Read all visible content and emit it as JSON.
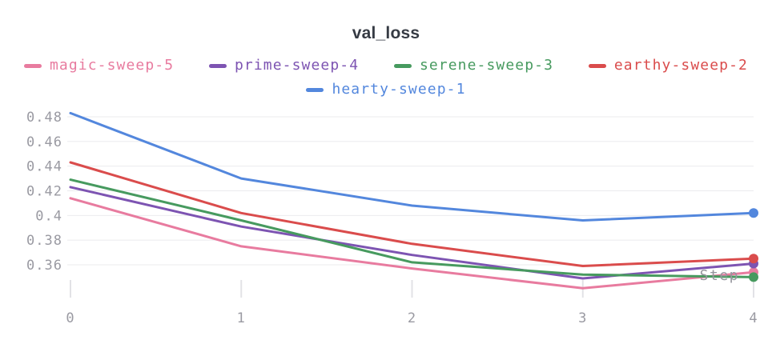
{
  "title": "val_loss",
  "legend": {
    "rows": [
      [
        {
          "label": "magic-sweep-5",
          "color": "#E87B9F"
        },
        {
          "label": "prime-sweep-4",
          "color": "#7D54B2"
        },
        {
          "label": "serene-sweep-3",
          "color": "#479A5F"
        },
        {
          "label": "earthy-sweep-2",
          "color": "#DA4C4C"
        }
      ],
      [
        {
          "label": "hearty-sweep-1",
          "color": "#5387DD"
        }
      ]
    ]
  },
  "axes": {
    "x_title": "Step",
    "x_tick_labels": [
      "0",
      "1",
      "2",
      "3",
      "4"
    ],
    "y_tick_labels": [
      "0.48",
      "0.46",
      "0.44",
      "0.42",
      "0.4",
      "0.38",
      "0.36"
    ]
  },
  "chart_data": {
    "type": "line",
    "title": "val_loss",
    "xlabel": "Step",
    "ylabel": "",
    "x": [
      0,
      1,
      2,
      3,
      4
    ],
    "series": [
      {
        "name": "hearty-sweep-1",
        "color": "#5387DD",
        "values": [
          0.483,
          0.43,
          0.408,
          0.396,
          0.402
        ]
      },
      {
        "name": "earthy-sweep-2",
        "color": "#DA4C4C",
        "values": [
          0.443,
          0.402,
          0.377,
          0.359,
          0.365
        ]
      },
      {
        "name": "serene-sweep-3",
        "color": "#479A5F",
        "values": [
          0.429,
          0.396,
          0.362,
          0.352,
          0.35
        ]
      },
      {
        "name": "prime-sweep-4",
        "color": "#7D54B2",
        "values": [
          0.423,
          0.391,
          0.368,
          0.349,
          0.361
        ]
      },
      {
        "name": "magic-sweep-5",
        "color": "#E87B9F",
        "values": [
          0.414,
          0.375,
          0.357,
          0.341,
          0.354
        ]
      }
    ],
    "y_tick_values": [
      0.48,
      0.46,
      0.44,
      0.42,
      0.4,
      0.38,
      0.36
    ],
    "xlim": [
      0,
      4
    ],
    "ylim": [
      0.335,
      0.49
    ],
    "grid": "horizontal",
    "legend_position": "top",
    "end_point_markers": true
  },
  "colors": {
    "background": "#ffffff",
    "grid_line": "#ebebee",
    "tick_mark": "#e2e2e6",
    "tick_label": "#9a9aa2",
    "axis_title": "#96969e",
    "title_text": "#363b44"
  }
}
